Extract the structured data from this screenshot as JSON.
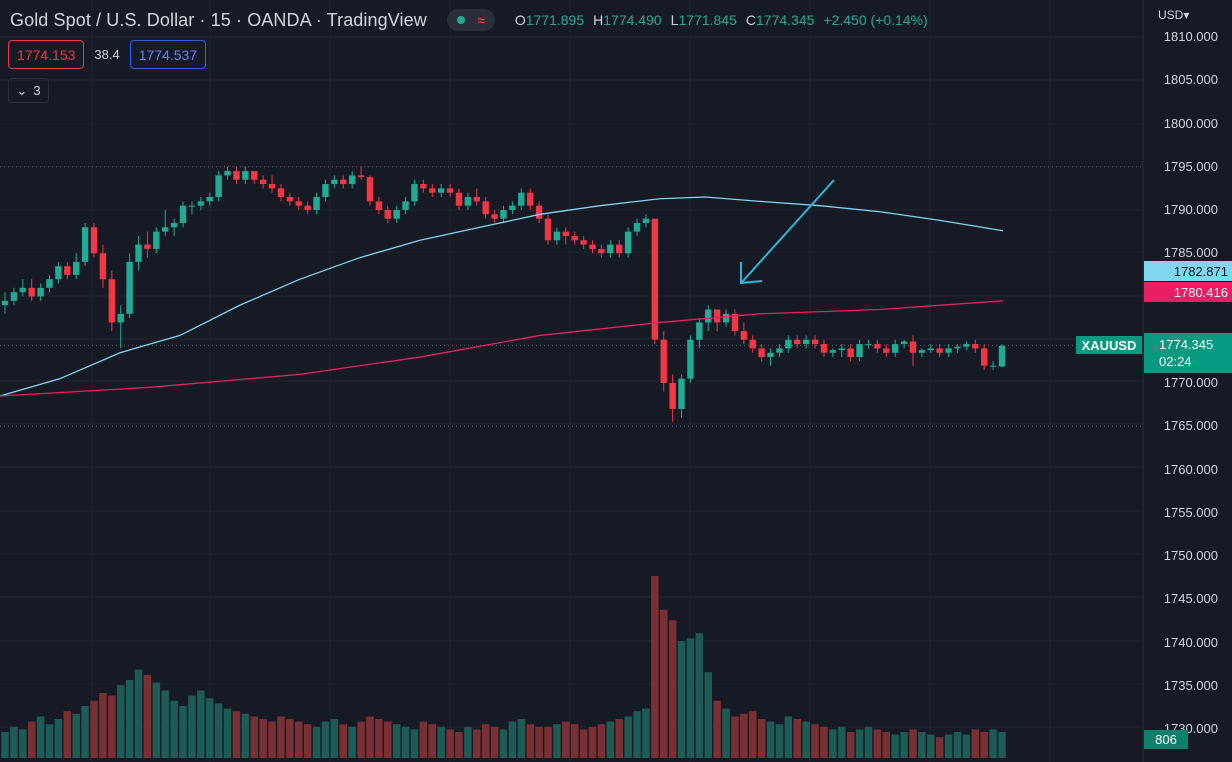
{
  "header": {
    "title": "Gold Spot / U.S. Dollar · 15 · OANDA · TradingView",
    "ohlc": {
      "o_label": "O",
      "o_value": "1771.895",
      "h_label": "H",
      "h_value": "1774.490",
      "l_label": "L",
      "l_value": "1771.845",
      "c_label": "C",
      "c_value": "1774.345",
      "change": "+2.450 (+0.14%)"
    },
    "sell_price": "1774.153",
    "spread": "38.4",
    "buy_price": "1774.537",
    "indicators_count": "3",
    "currency": "USD"
  },
  "price_axis": {
    "ticks": [
      "1810.000",
      "1805.000",
      "1800.000",
      "1795.000",
      "1790.000",
      "1785.000",
      "1780.000",
      "1775.000",
      "1770.000",
      "1765.000",
      "1760.000",
      "1755.000",
      "1750.000",
      "1745.000",
      "1740.000",
      "1735.000",
      "1730.000"
    ],
    "ma_fast_value": "1782.871",
    "ma_slow_value": "1780.416",
    "symbol": "XAUUSD",
    "last_price": "1774.345",
    "countdown": "02:24",
    "volume": "806"
  },
  "colors": {
    "background": "#161a25",
    "up": "#22ab94",
    "down": "#f23645",
    "ma_fast": "#7fd6ee",
    "ma_slow": "#e91e63",
    "arrow": "#2bb7da"
  },
  "chart_data": {
    "type": "candlestick",
    "symbol": "XAUUSD",
    "interval": "15",
    "ylim": [
      1728,
      1812
    ],
    "candles": [
      [
        1779,
        1780.5,
        1778,
        1779.5
      ],
      [
        1779.5,
        1781,
        1779,
        1780.5
      ],
      [
        1780.5,
        1782,
        1780,
        1781
      ],
      [
        1781,
        1782,
        1779.5,
        1780
      ],
      [
        1780,
        1781.5,
        1779.5,
        1781
      ],
      [
        1781,
        1782.5,
        1780.5,
        1782
      ],
      [
        1782,
        1784,
        1781.5,
        1783.5
      ],
      [
        1783.5,
        1784,
        1782,
        1782.5
      ],
      [
        1782.5,
        1785,
        1782,
        1784
      ],
      [
        1784,
        1788.5,
        1783.5,
        1788
      ],
      [
        1788,
        1788.5,
        1784.5,
        1785
      ],
      [
        1785,
        1786,
        1781,
        1782
      ],
      [
        1782,
        1783,
        1776,
        1777
      ],
      [
        1777,
        1779,
        1774,
        1778
      ],
      [
        1778,
        1785,
        1777.5,
        1784
      ],
      [
        1784,
        1787,
        1783,
        1786
      ],
      [
        1786,
        1787.5,
        1784.5,
        1785.5
      ],
      [
        1785.5,
        1788,
        1785,
        1787.5
      ],
      [
        1787.5,
        1790,
        1787,
        1788
      ],
      [
        1788,
        1789,
        1787,
        1788.5
      ],
      [
        1788.5,
        1791,
        1788,
        1790.5
      ],
      [
        1790.5,
        1791,
        1789.5,
        1790.5
      ],
      [
        1790.5,
        1791.5,
        1790,
        1791
      ],
      [
        1791,
        1792,
        1790.5,
        1791.5
      ],
      [
        1791.5,
        1794.5,
        1791,
        1794
      ],
      [
        1794,
        1795,
        1793.5,
        1794.5
      ],
      [
        1794.5,
        1795,
        1793,
        1793.5
      ],
      [
        1793.5,
        1795,
        1793,
        1794.5
      ],
      [
        1794.5,
        1794.5,
        1793,
        1793.5
      ],
      [
        1793.5,
        1794,
        1792.5,
        1793
      ],
      [
        1793,
        1794,
        1792,
        1792.5
      ],
      [
        1792.5,
        1793,
        1791,
        1791.5
      ],
      [
        1791.5,
        1792,
        1790.5,
        1791
      ],
      [
        1791,
        1791.5,
        1790,
        1790.5
      ],
      [
        1790.5,
        1791,
        1789.5,
        1790
      ],
      [
        1790,
        1792,
        1789.5,
        1791.5
      ],
      [
        1791.5,
        1793.5,
        1791,
        1793
      ],
      [
        1793,
        1794,
        1792.5,
        1793.5
      ],
      [
        1793.5,
        1794,
        1792.5,
        1793
      ],
      [
        1793,
        1794.5,
        1792.5,
        1794
      ],
      [
        1794,
        1795,
        1793.5,
        1793.8
      ],
      [
        1793.8,
        1794,
        1790.5,
        1791
      ],
      [
        1791,
        1791.5,
        1789.5,
        1790
      ],
      [
        1790,
        1790.5,
        1788.5,
        1789
      ],
      [
        1789,
        1790.5,
        1788.5,
        1790
      ],
      [
        1790,
        1791.5,
        1789.5,
        1791
      ],
      [
        1791,
        1793.5,
        1790.5,
        1793
      ],
      [
        1793,
        1793.5,
        1792,
        1792.5
      ],
      [
        1792.5,
        1793,
        1791.5,
        1792
      ],
      [
        1792,
        1793,
        1791.5,
        1792.5
      ],
      [
        1792.5,
        1793,
        1791.5,
        1792
      ],
      [
        1792,
        1792.5,
        1790,
        1790.5
      ],
      [
        1790.5,
        1792,
        1790,
        1791.5
      ],
      [
        1791.5,
        1792.5,
        1790.5,
        1791
      ],
      [
        1791,
        1791.5,
        1789,
        1789.5
      ],
      [
        1789.5,
        1790,
        1788.5,
        1789
      ],
      [
        1789,
        1790.5,
        1788.5,
        1790
      ],
      [
        1790,
        1791,
        1789.5,
        1790.5
      ],
      [
        1790.5,
        1792.5,
        1790,
        1792
      ],
      [
        1792,
        1792.5,
        1790,
        1790.5
      ],
      [
        1790.5,
        1791,
        1788.5,
        1789
      ],
      [
        1789,
        1789.5,
        1786,
        1786.5
      ],
      [
        1786.5,
        1788,
        1786,
        1787.5
      ],
      [
        1787.5,
        1788,
        1786,
        1787
      ],
      [
        1787,
        1787.5,
        1786,
        1786.5
      ],
      [
        1786.5,
        1787,
        1785.5,
        1786
      ],
      [
        1786,
        1786.5,
        1785,
        1785.5
      ],
      [
        1785.5,
        1786,
        1784.5,
        1785
      ],
      [
        1785,
        1786.5,
        1784.5,
        1786
      ],
      [
        1786,
        1786.5,
        1784.5,
        1785
      ],
      [
        1785,
        1788,
        1784.5,
        1787.5
      ],
      [
        1787.5,
        1789,
        1787,
        1788.5
      ],
      [
        1788.5,
        1789.5,
        1788,
        1789
      ],
      [
        1789,
        1789,
        1774.5,
        1775
      ],
      [
        1775,
        1776,
        1769,
        1770
      ],
      [
        1770,
        1771,
        1765.5,
        1767
      ],
      [
        1767,
        1771,
        1766,
        1770.5
      ],
      [
        1770.5,
        1775.5,
        1770,
        1775
      ],
      [
        1775,
        1777.5,
        1774,
        1777
      ],
      [
        1777,
        1779,
        1776,
        1778.5
      ],
      [
        1778.5,
        1778.5,
        1776,
        1777
      ],
      [
        1777,
        1778.5,
        1776.5,
        1778
      ],
      [
        1778,
        1778.5,
        1775.5,
        1776
      ],
      [
        1776,
        1777,
        1774.5,
        1775
      ],
      [
        1775,
        1775.5,
        1773.5,
        1774
      ],
      [
        1774,
        1774.5,
        1772.5,
        1773
      ],
      [
        1773,
        1774,
        1772,
        1773.5
      ],
      [
        1773.5,
        1774.5,
        1773,
        1774
      ],
      [
        1774,
        1775.5,
        1773.5,
        1775
      ],
      [
        1775,
        1775.5,
        1774,
        1774.5
      ],
      [
        1774.5,
        1775.5,
        1774,
        1775
      ],
      [
        1775,
        1775.5,
        1774,
        1774.5
      ],
      [
        1774.5,
        1775,
        1773,
        1773.5
      ],
      [
        1773.5,
        1774,
        1773,
        1773.8
      ],
      [
        1773.8,
        1774.5,
        1773,
        1774
      ],
      [
        1774,
        1774.5,
        1772.5,
        1773
      ],
      [
        1773,
        1775,
        1772.5,
        1774.5
      ],
      [
        1774.5,
        1775,
        1774,
        1774.5
      ],
      [
        1774.5,
        1775,
        1773.5,
        1774
      ],
      [
        1774,
        1774.5,
        1773,
        1773.5
      ],
      [
        1773.5,
        1775,
        1773,
        1774.5
      ],
      [
        1774.5,
        1775,
        1774,
        1774.8
      ],
      [
        1774.8,
        1775.5,
        1772,
        1773.5
      ],
      [
        1773.5,
        1774,
        1773,
        1773.8
      ],
      [
        1773.8,
        1774.5,
        1773.5,
        1774
      ],
      [
        1774,
        1774.5,
        1773,
        1773.5
      ],
      [
        1773.5,
        1774.5,
        1773,
        1774
      ],
      [
        1774,
        1774.5,
        1773.5,
        1774.2
      ],
      [
        1774.2,
        1774.8,
        1773.8,
        1774.5
      ],
      [
        1774.5,
        1775,
        1773.5,
        1774
      ],
      [
        1774,
        1774.5,
        1771.5,
        1772
      ],
      [
        1772,
        1772.5,
        1771.5,
        1772
      ],
      [
        1771.9,
        1774.5,
        1771.8,
        1774.3
      ]
    ],
    "volumes": [
      10,
      12,
      11,
      14,
      16,
      13,
      15,
      18,
      17,
      20,
      22,
      25,
      24,
      28,
      30,
      34,
      32,
      29,
      26,
      22,
      20,
      24,
      26,
      23,
      21,
      19,
      18,
      17,
      16,
      15,
      14,
      16,
      15,
      14,
      13,
      12,
      14,
      15,
      13,
      12,
      14,
      16,
      15,
      14,
      13,
      12,
      11,
      14,
      13,
      12,
      11,
      10,
      12,
      11,
      13,
      12,
      11,
      14,
      15,
      13,
      12,
      12,
      13,
      14,
      13,
      11,
      12,
      13,
      14,
      15,
      16,
      18,
      19,
      70,
      57,
      53,
      45,
      46,
      48,
      33,
      22,
      19,
      16,
      17,
      18,
      15,
      14,
      13,
      16,
      15,
      14,
      13,
      12,
      11,
      12,
      10,
      11,
      12,
      11,
      10,
      9,
      10,
      11,
      10,
      9,
      8,
      9,
      10,
      9,
      11,
      10,
      11,
      10
    ],
    "ma_fast": [
      [
        0,
        1768.5
      ],
      [
        60,
        1770.5
      ],
      [
        120,
        1773.5
      ],
      [
        180,
        1775.5
      ],
      [
        240,
        1779
      ],
      [
        300,
        1782
      ],
      [
        360,
        1784.5
      ],
      [
        420,
        1786.5
      ],
      [
        480,
        1788
      ],
      [
        540,
        1789.5
      ],
      [
        600,
        1790.5
      ],
      [
        660,
        1791.3
      ],
      [
        705,
        1791.5
      ],
      [
        760,
        1791
      ],
      [
        820,
        1790.5
      ],
      [
        880,
        1789.8
      ],
      [
        940,
        1788.8
      ],
      [
        1003,
        1787.6
      ]
    ],
    "ma_slow": [
      [
        0,
        1768.5
      ],
      [
        150,
        1769.5
      ],
      [
        300,
        1771
      ],
      [
        420,
        1773
      ],
      [
        540,
        1775.5
      ],
      [
        660,
        1777
      ],
      [
        760,
        1778
      ],
      [
        880,
        1778.5
      ],
      [
        1003,
        1779.5
      ]
    ],
    "dotted_levels": [
      1795,
      1774.345,
      1765
    ]
  }
}
